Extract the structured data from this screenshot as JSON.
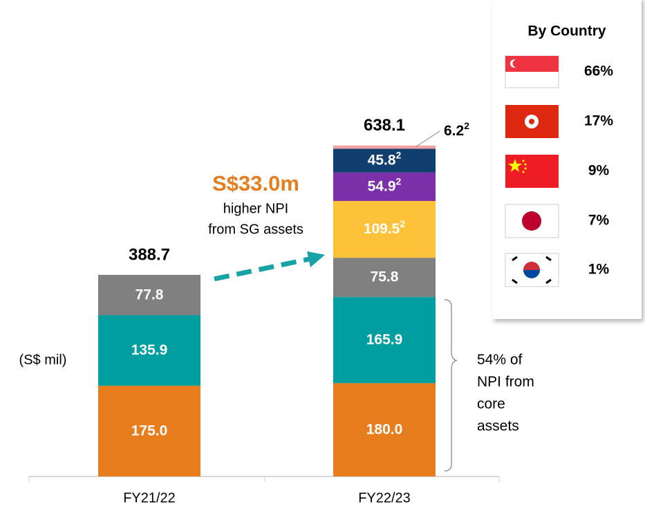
{
  "chart_data": {
    "type": "stacked_bar",
    "categories": [
      "FY21/22",
      "FY22/23"
    ],
    "unit_label": "(S$ mil)",
    "ylim": [
      0,
      900
    ],
    "series": [
      {
        "color": "#E87D1E",
        "values": [
          175.0,
          180.0
        ],
        "value_labels": [
          "175.0",
          "180.0"
        ]
      },
      {
        "color": "#009EA0",
        "values": [
          135.9,
          165.9
        ],
        "value_labels": [
          "135.9",
          "165.9"
        ]
      },
      {
        "color": "#808080",
        "values": [
          77.8,
          75.8
        ],
        "value_labels": [
          "77.8",
          "75.8"
        ]
      },
      {
        "color": "#FDC13A",
        "values": [
          null,
          109.5
        ],
        "value_labels": [
          null,
          "109.5"
        ],
        "footnote": "2"
      },
      {
        "color": "#7B2FA8",
        "values": [
          null,
          54.9
        ],
        "value_labels": [
          null,
          "54.9"
        ],
        "footnote": "2"
      },
      {
        "color": "#103E6E",
        "values": [
          null,
          45.8
        ],
        "value_labels": [
          null,
          "45.8"
        ],
        "footnote": "2"
      },
      {
        "color": "#F4A1A6",
        "values": [
          null,
          6.2
        ],
        "value_labels": [
          null,
          "6.2"
        ],
        "footnote": "2"
      }
    ],
    "totals": [
      388.7,
      638.1
    ],
    "annotation": {
      "headline": "S$33.0m",
      "lines": [
        "higher NPI",
        "from SG assets"
      ]
    },
    "brace_note": [
      "54% of",
      "NPI from",
      "core",
      "assets"
    ],
    "legend": {
      "title": "By Country",
      "values": [
        66,
        17,
        9,
        7,
        1
      ],
      "value_labels": [
        "66%",
        "17%",
        "9%",
        "7%",
        "1%"
      ]
    }
  }
}
